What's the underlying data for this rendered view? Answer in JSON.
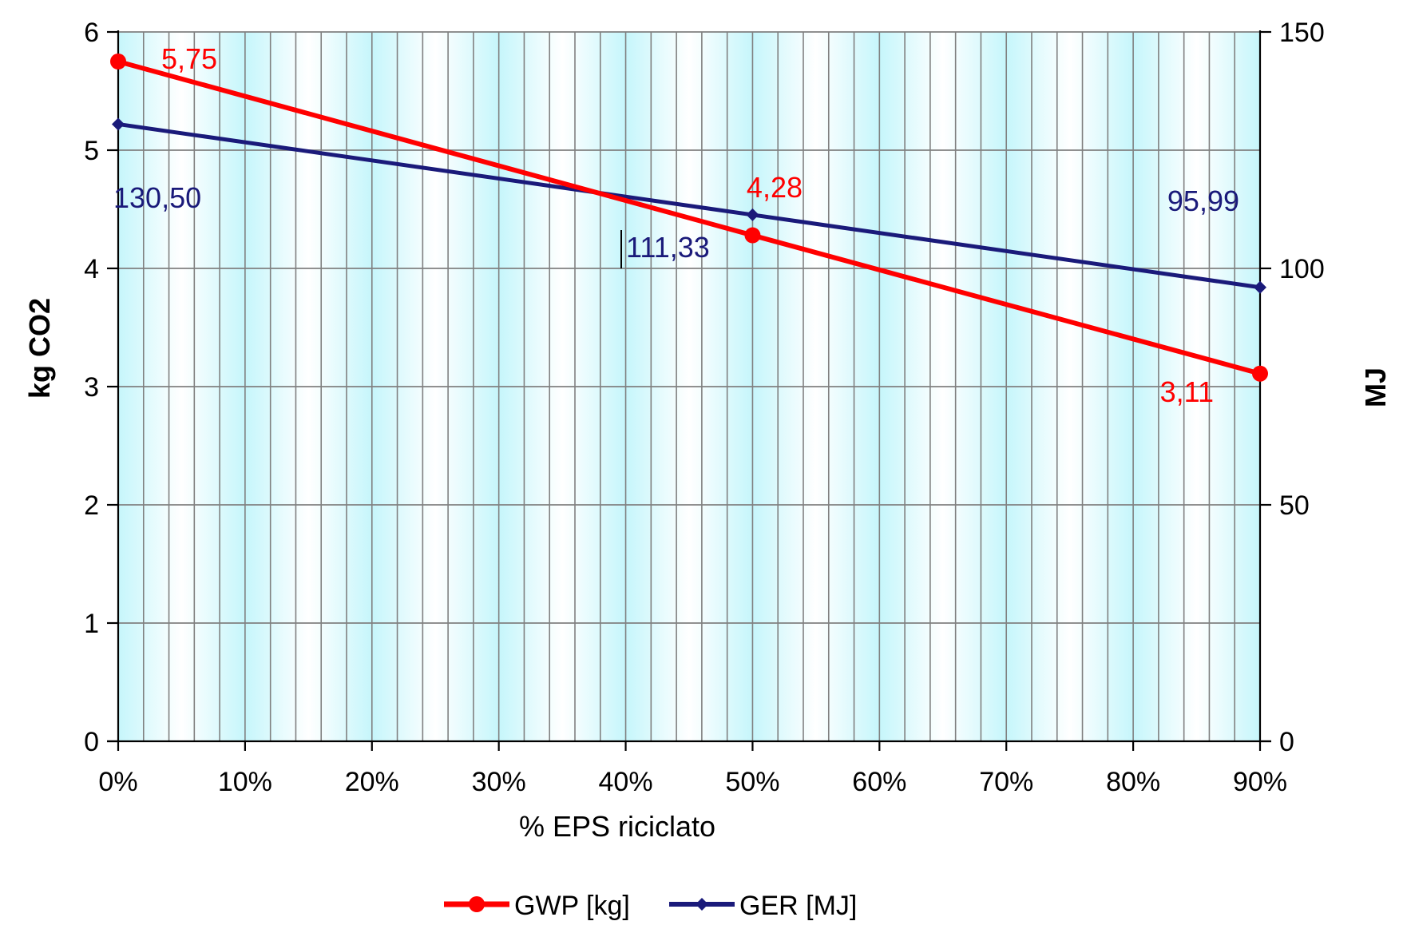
{
  "chart_data": {
    "type": "line",
    "title": "",
    "xlabel": "% EPS riciclato",
    "ylabel": "kg CO2",
    "y2label": "MJ",
    "x": [
      0,
      50,
      90
    ],
    "x_tick_labels": [
      "0%",
      "10%",
      "20%",
      "30%",
      "40%",
      "50%",
      "60%",
      "70%",
      "80%",
      "90%"
    ],
    "x_tick_values": [
      0,
      10,
      20,
      30,
      40,
      50,
      60,
      70,
      80,
      90
    ],
    "xlim": [
      0,
      90
    ],
    "ylim": [
      0,
      6
    ],
    "y_ticks": [
      0,
      1,
      2,
      3,
      4,
      5,
      6
    ],
    "y_tick_labels": [
      "0",
      "1",
      "2",
      "3",
      "4",
      "5",
      "6"
    ],
    "y2lim": [
      0,
      150
    ],
    "y2_ticks": [
      0,
      50,
      100,
      150
    ],
    "y2_tick_labels": [
      "0",
      "50",
      "100",
      "150"
    ],
    "grid": true,
    "legend_position": "bottom",
    "series": [
      {
        "name": "GWP [kg]",
        "axis": "left",
        "color": "#ff0000",
        "values": [
          5.75,
          4.28,
          3.11
        ],
        "data_labels": [
          "5,75",
          "4,28",
          "3,11"
        ]
      },
      {
        "name": "GER [MJ]",
        "axis": "right",
        "color": "#1a1a7a",
        "values": [
          130.5,
          111.33,
          95.99
        ],
        "data_labels": [
          "130,50",
          "111,33",
          "95,99"
        ]
      }
    ]
  }
}
